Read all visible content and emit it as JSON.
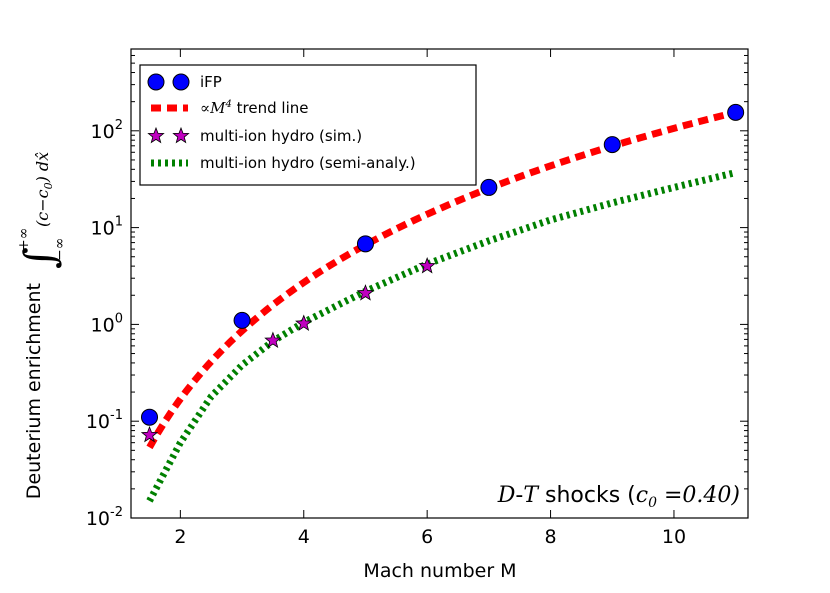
{
  "chart_data": {
    "type": "scatter",
    "title": "",
    "xlabel": "Mach number M",
    "ylabel": "Deuterium enrichment",
    "ylabel_integral": {
      "upper_limit": "+∞",
      "lower_limit": "−∞",
      "integrand": "(c−c",
      "integrand_sub": "0",
      "integrand_end": ") dx̂"
    },
    "x_scale": "linear",
    "y_scale": "log",
    "xlim": [
      1.2,
      11.2
    ],
    "ylim": [
      0.01,
      700
    ],
    "x_ticks": [
      2,
      4,
      6,
      8,
      10
    ],
    "x_tick_labels": [
      "2",
      "4",
      "6",
      "8",
      "10"
    ],
    "y_ticks": [
      {
        "value": 0.01,
        "base": "10",
        "exp": "-2"
      },
      {
        "value": 0.1,
        "base": "10",
        "exp": "-1"
      },
      {
        "value": 1,
        "base": "10",
        "exp": "0"
      },
      {
        "value": 10,
        "base": "10",
        "exp": "1"
      },
      {
        "value": 100,
        "base": "10",
        "exp": "2"
      }
    ],
    "series": [
      {
        "name": "iFP",
        "kind": "markers",
        "marker": "circle",
        "color": "#0000ff",
        "x": [
          1.5,
          3,
          5,
          7,
          9,
          11
        ],
        "y": [
          0.11,
          1.1,
          6.8,
          26,
          72,
          155
        ]
      },
      {
        "name_prefix": "∝M",
        "name_sup": "4",
        "name_suffix": " trend line",
        "kind": "trend",
        "color": "#ff0000",
        "dash": "10,6",
        "stroke_width": 7,
        "coefficient": 0.0106,
        "power": 4,
        "x_range": [
          1.5,
          11
        ]
      },
      {
        "name": "multi-ion hydro (sim.)",
        "kind": "markers",
        "marker": "star",
        "color": "#bf00bf",
        "x": [
          1.5,
          3.5,
          4,
          5,
          6
        ],
        "y": [
          0.072,
          0.68,
          1.02,
          2.1,
          4.0
        ]
      },
      {
        "name": "multi-ion hydro (semi-analy.)",
        "kind": "semi-analytic",
        "color": "#008000",
        "dash": "3,4",
        "stroke_width": 7,
        "x": [
          1.5,
          2,
          2.5,
          3,
          3.5,
          4,
          5,
          6,
          7,
          8,
          9,
          10,
          11
        ],
        "y": [
          0.015,
          0.06,
          0.18,
          0.38,
          0.67,
          1.05,
          2.2,
          4.2,
          7.3,
          12,
          18,
          26,
          37
        ]
      }
    ],
    "legend_location": "top-left",
    "annotation": {
      "species_a": "D",
      "dash": "-",
      "species_b": "T",
      "word": " shocks (",
      "c_symbol": "c",
      "c_sub": "0",
      "equals": " =0.40)"
    }
  }
}
